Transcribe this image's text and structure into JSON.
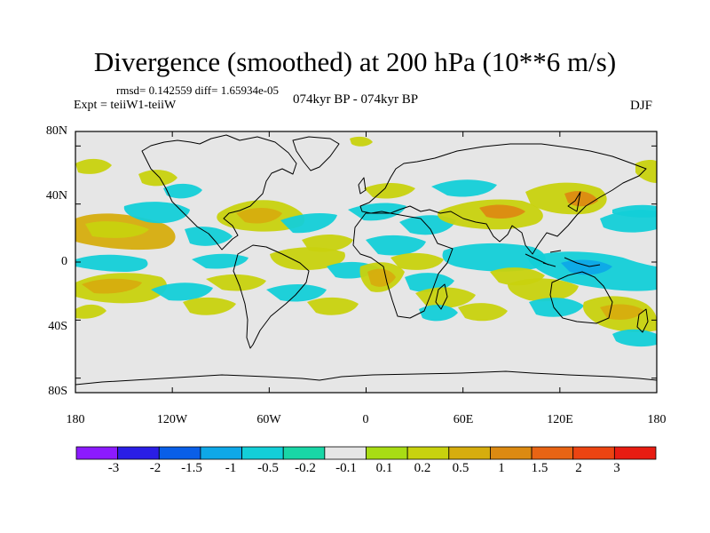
{
  "title": "Divergence (smoothed) at 200 hPa (10**6 m/s)",
  "stats": "rmsd= 0.142559 diff= 1.65934e-05",
  "experiment": "Expt = teiiW1-teiiW",
  "period": "074kyr BP - 074kyr BP",
  "season": "DJF",
  "map": {
    "type": "filled-contour-map",
    "projection": "cylindrical-equidistant",
    "lon_range": [
      -180,
      180
    ],
    "lat_range": [
      -90,
      90
    ],
    "background_color": "#e6e6e6",
    "coastline_color": "#000000",
    "lat_ticks": [
      "80N",
      "40N",
      "0",
      "40S",
      "80S"
    ],
    "lon_ticks": [
      "180",
      "120W",
      "60W",
      "0",
      "60E",
      "120E",
      "180"
    ]
  },
  "colorbar": {
    "labels": [
      "-3",
      "-2",
      "-1.5",
      "-1",
      "-0.5",
      "-0.2",
      "-0.1",
      "0.1",
      "0.2",
      "0.5",
      "1",
      "1.5",
      "2",
      "3"
    ],
    "colors": [
      "#8c1aff",
      "#2a1ee6",
      "#0a5fe8",
      "#0ea8e8",
      "#13cfd8",
      "#19d6a6",
      "#e6e6e6",
      "#a8dc14",
      "#c8d20e",
      "#d6ad0e",
      "#dc8a12",
      "#e86414",
      "#ec4412",
      "#e81c12"
    ]
  }
}
